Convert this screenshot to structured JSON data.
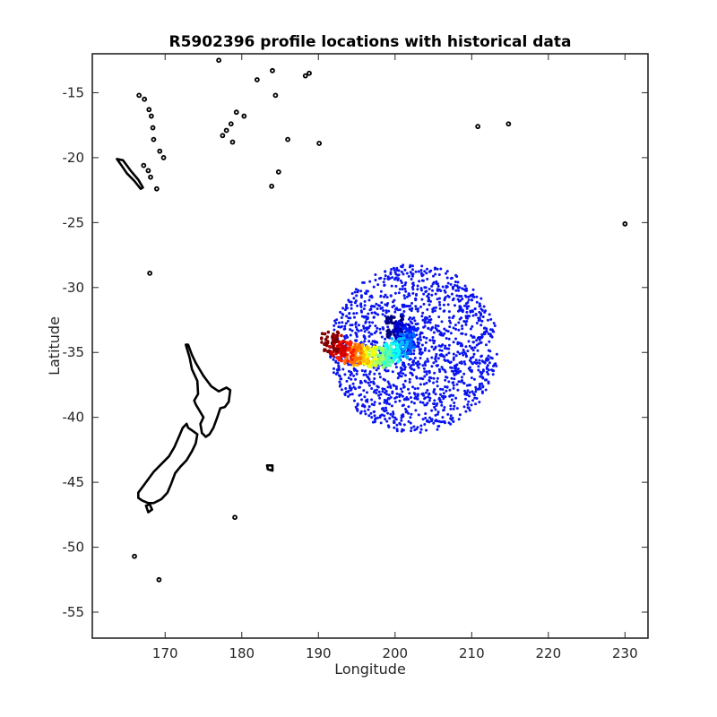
{
  "chart_data": {
    "type": "scatter",
    "title": "R5902396 profile locations with historical data",
    "xlabel": "Longitude",
    "ylabel": "Latitude",
    "xlim": [
      160.5,
      233
    ],
    "ylim": [
      -57,
      -12
    ],
    "xticks": [
      170,
      180,
      190,
      200,
      210,
      220,
      230
    ],
    "yticks": [
      -15,
      -20,
      -25,
      -30,
      -35,
      -40,
      -45,
      -50,
      -55
    ],
    "grid": false,
    "legend": "none",
    "coastline_color": "#000000",
    "series": [
      {
        "kind": "historical",
        "color": "#0a14ee",
        "center": [
          202.5,
          -34.7
        ],
        "radius_x": 11.0,
        "radius_y": 6.5,
        "count": 1500
      },
      {
        "kind": "profiles",
        "colormap": "jet",
        "track_lon": [
          191.5,
          192.5,
          193.5,
          194.5,
          195.5,
          196.5,
          197.5,
          198.5,
          199.5,
          200.5,
          201.5,
          202.0,
          201.0,
          200.0
        ],
        "track_lat": [
          -34.2,
          -34.5,
          -34.9,
          -35.1,
          -35.2,
          -35.3,
          -35.4,
          -35.3,
          -35.1,
          -34.7,
          -34.3,
          -33.8,
          -33.5,
          -33.0
        ]
      }
    ],
    "land": [
      {
        "name": "NZ North Island",
        "lon": [
          172.7,
          173.0,
          173.5,
          174.0,
          174.5,
          175.0,
          175.5,
          176.0,
          176.5,
          177.0,
          178.0,
          178.5,
          178.3,
          177.8,
          177.2,
          176.8,
          176.3,
          175.8,
          175.3,
          174.8,
          174.6,
          175.0,
          174.5,
          174.0,
          173.8,
          174.3,
          174.2,
          173.5,
          173.2,
          172.7
        ],
        "lat": [
          -34.4,
          -34.4,
          -35.2,
          -35.8,
          -36.3,
          -36.8,
          -37.2,
          -37.6,
          -37.8,
          -38.0,
          -37.7,
          -37.9,
          -38.8,
          -39.2,
          -39.3,
          -40.0,
          -40.8,
          -41.3,
          -41.5,
          -41.2,
          -40.5,
          -40.0,
          -39.5,
          -39.0,
          -38.7,
          -38.2,
          -37.2,
          -36.3,
          -35.4,
          -34.4
        ]
      },
      {
        "name": "NZ South Island",
        "lon": [
          174.2,
          173.5,
          173.0,
          172.8,
          172.3,
          171.8,
          171.2,
          170.5,
          169.5,
          168.5,
          167.5,
          166.5,
          166.5,
          167.0,
          167.8,
          168.5,
          169.5,
          170.3,
          170.8,
          171.3,
          172.0,
          172.8,
          173.5,
          174.0,
          174.2
        ],
        "lat": [
          -41.3,
          -41.0,
          -40.8,
          -40.5,
          -40.8,
          -41.5,
          -42.3,
          -43.0,
          -43.6,
          -44.2,
          -45.0,
          -45.8,
          -46.2,
          -46.4,
          -46.6,
          -46.6,
          -46.3,
          -45.8,
          -45.1,
          -44.3,
          -43.8,
          -43.3,
          -42.6,
          -42.0,
          -41.3
        ]
      },
      {
        "name": "Stewart Island",
        "lon": [
          167.5,
          168.0,
          168.3,
          167.8,
          167.5
        ],
        "lat": [
          -46.8,
          -46.7,
          -47.1,
          -47.3,
          -46.8
        ]
      },
      {
        "name": "New Caledonia",
        "lon": [
          163.7,
          164.5,
          165.5,
          166.5,
          167.1,
          166.8,
          166.0,
          165.0,
          164.2,
          163.7
        ],
        "lat": [
          -20.1,
          -20.2,
          -21.0,
          -21.7,
          -22.3,
          -22.4,
          -21.8,
          -21.2,
          -20.5,
          -20.1
        ]
      },
      {
        "name": "Chatham Islands",
        "lon": [
          183.3,
          184.0,
          184.0,
          183.4,
          183.3
        ],
        "lat": [
          -43.7,
          -43.7,
          -44.1,
          -44.0,
          -43.7
        ]
      }
    ],
    "islands": [
      [
        166.6,
        -15.2
      ],
      [
        167.3,
        -15.5
      ],
      [
        167.9,
        -16.3
      ],
      [
        168.2,
        -16.8
      ],
      [
        168.4,
        -17.7
      ],
      [
        168.5,
        -18.6
      ],
      [
        169.3,
        -19.5
      ],
      [
        169.8,
        -20.0
      ],
      [
        167.2,
        -20.6
      ],
      [
        167.8,
        -21.0
      ],
      [
        168.1,
        -21.5
      ],
      [
        168.9,
        -22.4
      ],
      [
        178.0,
        -17.9
      ],
      [
        178.6,
        -17.4
      ],
      [
        179.3,
        -16.5
      ],
      [
        180.3,
        -16.8
      ],
      [
        177.5,
        -18.3
      ],
      [
        178.8,
        -18.8
      ],
      [
        177.0,
        -12.5
      ],
      [
        182.0,
        -14.0
      ],
      [
        184.0,
        -13.3
      ],
      [
        184.4,
        -15.2
      ],
      [
        186.0,
        -18.6
      ],
      [
        190.1,
        -18.9
      ],
      [
        184.8,
        -21.1
      ],
      [
        183.9,
        -22.2
      ],
      [
        188.8,
        -13.5
      ],
      [
        188.3,
        -13.7
      ],
      [
        168.0,
        -28.9
      ],
      [
        179.1,
        -47.7
      ],
      [
        166.0,
        -50.7
      ],
      [
        169.2,
        -52.5
      ],
      [
        210.8,
        -17.6
      ],
      [
        214.8,
        -17.4
      ],
      [
        230.0,
        -25.1
      ]
    ]
  }
}
